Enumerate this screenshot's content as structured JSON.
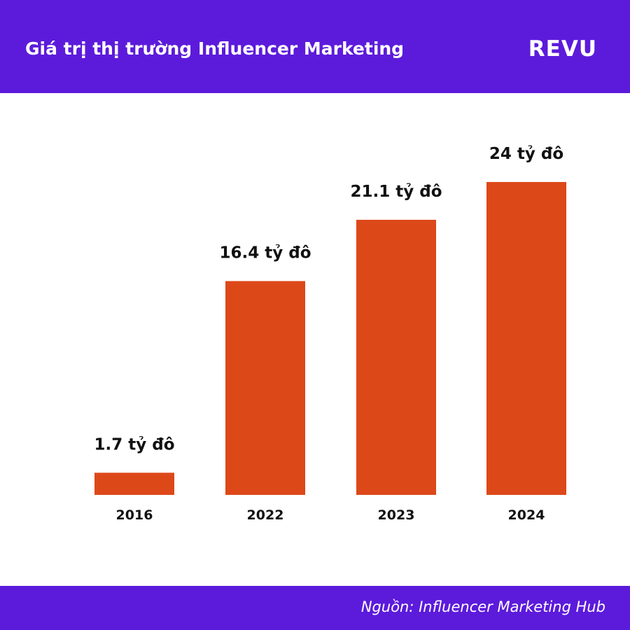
{
  "header": {
    "title": "Giá trị thị trường Influencer Marketing",
    "brand": "REVU"
  },
  "footer": {
    "source": "Nguồn: Influencer Marketing Hub"
  },
  "colors": {
    "header_bg": "#5c1bdb",
    "bar": "#dd4819",
    "text": "#111111"
  },
  "chart_data": {
    "type": "bar",
    "categories": [
      "2016",
      "2022",
      "2023",
      "2024"
    ],
    "values": [
      1.7,
      16.4,
      21.1,
      24
    ],
    "data_labels": [
      "1.7 tỷ đô",
      "16.4 tỷ đô",
      "21.1 tỷ đô",
      "24 tỷ đô"
    ],
    "title": "Giá trị thị trường Influencer Marketing",
    "xlabel": "",
    "ylabel": "",
    "ylim": [
      0,
      24
    ],
    "grid": false,
    "legend": "none"
  }
}
